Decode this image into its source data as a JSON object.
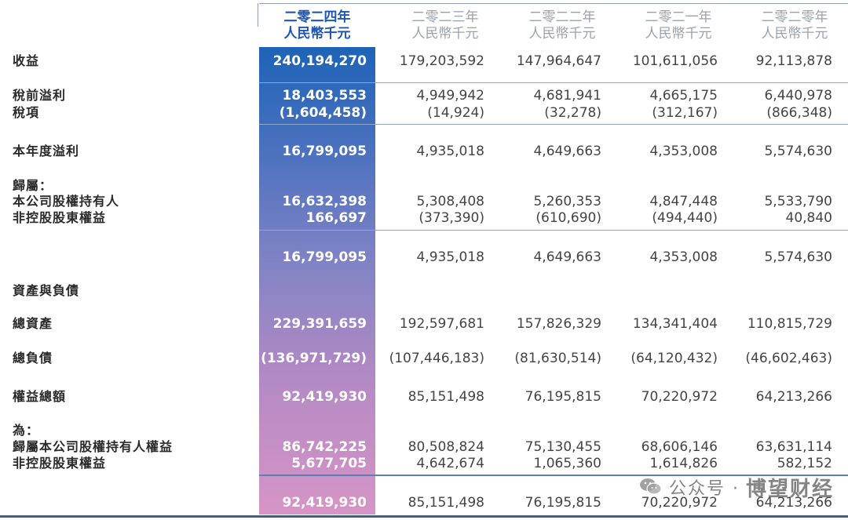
{
  "headers": [
    {
      "line1": "二零二四年",
      "line2": "人民幣千元"
    },
    {
      "line1": "二零二三年",
      "line2": "人民幣千元"
    },
    {
      "line1": "二零二二年",
      "line2": "人民幣千元"
    },
    {
      "line1": "二零二一年",
      "line2": "人民幣千元"
    },
    {
      "line1": "二零二零年",
      "line2": "人民幣千元"
    }
  ],
  "rows": [
    {
      "label": "收益",
      "values": [
        "240,194,270",
        "179,203,592",
        "147,964,647",
        "101,611,056",
        "92,113,878"
      ]
    },
    {
      "label": "稅前溢利",
      "values": [
        "18,403,553",
        "4,949,942",
        "4,681,941",
        "4,665,175",
        "6,440,978"
      ]
    },
    {
      "label": "稅項",
      "values": [
        "(1,604,458)",
        "(14,924)",
        "(32,278)",
        "(312,167)",
        "(866,348)"
      ]
    },
    {
      "label": "本年度溢利",
      "values": [
        "16,799,095",
        "4,935,018",
        "4,649,663",
        "4,353,008",
        "5,574,630"
      ]
    },
    {
      "label": "歸屬：",
      "values": [
        "",
        "",
        "",
        "",
        ""
      ]
    },
    {
      "label": "本公司股權持有人",
      "values": [
        "16,632,398",
        "5,308,408",
        "5,260,353",
        "4,847,448",
        "5,533,790"
      ]
    },
    {
      "label": "非控股股東權益",
      "values": [
        "166,697",
        "(373,390)",
        "(610,690)",
        "(494,440)",
        "40,840"
      ]
    },
    {
      "label": "",
      "values": [
        "16,799,095",
        "4,935,018",
        "4,649,663",
        "4,353,008",
        "5,574,630"
      ]
    },
    {
      "label": "資產與負債",
      "values": [
        "",
        "",
        "",
        "",
        ""
      ]
    },
    {
      "label": "總資產",
      "values": [
        "229,391,659",
        "192,597,681",
        "157,826,329",
        "134,341,404",
        "110,815,729"
      ]
    },
    {
      "label": "總負債",
      "values": [
        "(136,971,729)",
        "(107,446,183)",
        "(81,630,514)",
        "(64,120,432)",
        "(46,602,463)"
      ]
    },
    {
      "label": "權益總額",
      "values": [
        "92,419,930",
        "85,151,498",
        "76,195,815",
        "70,220,972",
        "64,213,266"
      ]
    },
    {
      "label": "為：",
      "values": [
        "",
        "",
        "",
        "",
        ""
      ]
    },
    {
      "label": "歸屬本公司股權持有人權益",
      "values": [
        "86,742,225",
        "80,508,824",
        "75,130,455",
        "68,606,146",
        "63,631,114"
      ]
    },
    {
      "label": "非控股股東權益",
      "values": [
        "5,677,705",
        "4,642,674",
        "1,065,360",
        "1,614,826",
        "582,152"
      ]
    },
    {
      "label": "",
      "values": [
        "92,419,930",
        "85,151,498",
        "76,195,815",
        "70,220,972",
        "64,213,266"
      ]
    }
  ],
  "watermark": {
    "text1": "公众号 ·",
    "text2": "博望财经",
    "icon": "wechat-icon"
  },
  "colors": {
    "highlight_top": "#1e63b8",
    "highlight_bottom": "#d695c6",
    "current_header": "#1f56b3"
  }
}
